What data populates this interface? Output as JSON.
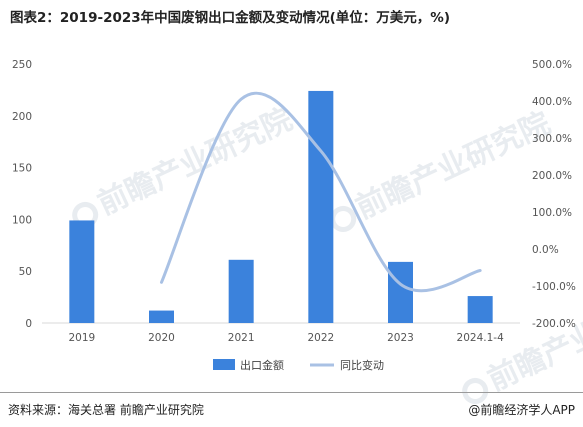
{
  "title": "图表2：2019-2023年中国废钢出口金额及变动情况(单位：万美元，%)",
  "chart_data": {
    "type": "bar+line",
    "categories": [
      "2019",
      "2020",
      "2021",
      "2022",
      "2023",
      "2024.1-4"
    ],
    "series": [
      {
        "name": "出口金额",
        "type": "bar",
        "axis": "left",
        "color": "#3b82dc",
        "values": [
          99,
          12,
          61,
          224,
          59,
          26
        ]
      },
      {
        "name": "同比变动",
        "type": "line",
        "axis": "right",
        "color": "#a9c1e4",
        "values": [
          null,
          -90,
          405,
          265,
          -95,
          -58
        ]
      }
    ],
    "left_axis": {
      "ticks": [
        "0",
        "50",
        "100",
        "150",
        "200",
        "250"
      ],
      "min": 0,
      "max": 250
    },
    "right_axis": {
      "ticks": [
        "-200.0%",
        "-100.0%",
        "0.0%",
        "100.0%",
        "200.0%",
        "300.0%",
        "400.0%",
        "500.0%"
      ],
      "min": -200,
      "max": 500
    },
    "legend": {
      "placement": "bottom"
    }
  },
  "watermark": {
    "text": "前瞻产业研究院"
  },
  "footer": {
    "source": "资料来源：海关总署 前瞻产业研究院",
    "credit": "@前瞻经济学人APP"
  }
}
